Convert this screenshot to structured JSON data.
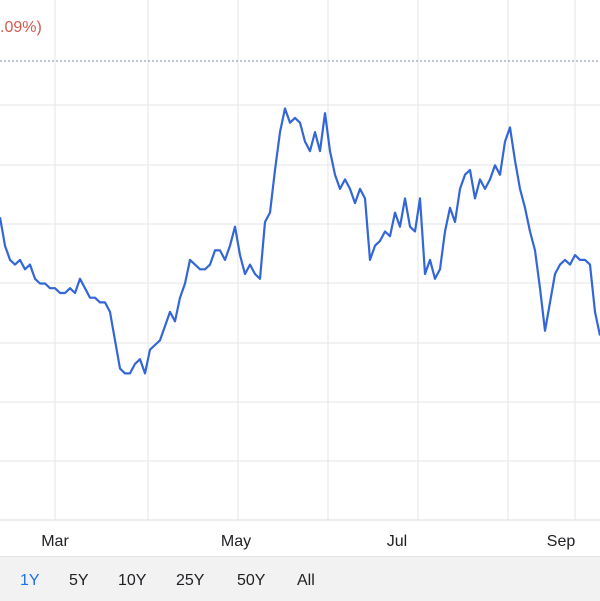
{
  "header": {
    "change_label": ".09%)"
  },
  "range_selector": {
    "options": [
      "1Y",
      "5Y",
      "10Y",
      "25Y",
      "50Y",
      "All"
    ],
    "active": "1Y"
  },
  "colors": {
    "line": "#3366d6",
    "reference_line": "#7b8fa8",
    "grid": "#e6e6e6",
    "change_text": "#d25b4f",
    "active_range": "#1a73e8"
  },
  "chart_data": {
    "type": "line",
    "grid": true,
    "x_tick_labels": [
      "Mar",
      "May",
      "Jul",
      "Sep"
    ],
    "x_tick_positions": [
      1.5,
      3.5,
      5.5,
      7.5
    ],
    "x_range": [
      0.9,
      7.8
    ],
    "y_range": [
      0,
      100
    ],
    "reference_line": 93,
    "series": [
      {
        "values": [
          [
            0.9,
            64
          ],
          [
            0.92,
            58
          ],
          [
            0.94,
            55
          ],
          [
            0.96,
            54
          ],
          [
            0.98,
            55
          ],
          [
            1.0,
            53
          ],
          [
            1.02,
            54
          ],
          [
            1.04,
            51
          ],
          [
            1.06,
            50
          ],
          [
            1.08,
            50
          ],
          [
            1.1,
            49
          ],
          [
            1.12,
            49
          ],
          [
            1.14,
            48
          ],
          [
            1.16,
            48
          ],
          [
            1.18,
            49
          ],
          [
            1.2,
            48
          ],
          [
            1.22,
            51
          ],
          [
            1.24,
            49
          ],
          [
            1.26,
            47
          ],
          [
            1.28,
            47
          ],
          [
            1.3,
            46
          ],
          [
            1.32,
            46
          ],
          [
            1.34,
            44
          ],
          [
            1.36,
            38
          ],
          [
            1.38,
            32
          ],
          [
            1.4,
            31
          ],
          [
            1.42,
            31
          ],
          [
            1.44,
            33
          ],
          [
            1.46,
            34
          ],
          [
            1.48,
            31
          ],
          [
            1.5,
            36
          ],
          [
            1.52,
            37
          ],
          [
            1.54,
            38
          ],
          [
            1.56,
            41
          ],
          [
            1.58,
            44
          ],
          [
            1.6,
            42
          ],
          [
            1.62,
            47
          ],
          [
            1.64,
            50
          ],
          [
            1.66,
            55
          ],
          [
            1.68,
            54
          ],
          [
            1.7,
            53
          ],
          [
            1.72,
            53
          ],
          [
            1.74,
            54
          ],
          [
            1.76,
            57
          ],
          [
            1.78,
            57
          ],
          [
            1.8,
            55
          ],
          [
            1.82,
            58
          ],
          [
            1.84,
            62
          ],
          [
            1.86,
            56
          ],
          [
            1.88,
            52
          ],
          [
            1.9,
            54
          ],
          [
            1.92,
            52
          ],
          [
            1.94,
            51
          ],
          [
            1.96,
            63
          ],
          [
            1.98,
            65
          ],
          [
            2.0,
            74
          ],
          [
            2.02,
            82
          ],
          [
            2.04,
            87
          ],
          [
            2.06,
            84
          ],
          [
            2.08,
            85
          ],
          [
            2.1,
            84
          ],
          [
            2.12,
            80
          ],
          [
            2.14,
            78
          ],
          [
            2.16,
            82
          ],
          [
            2.18,
            78
          ],
          [
            2.2,
            86
          ],
          [
            2.22,
            78
          ],
          [
            2.24,
            73
          ],
          [
            2.26,
            70
          ],
          [
            2.28,
            72
          ],
          [
            2.3,
            70
          ],
          [
            2.32,
            67
          ],
          [
            2.34,
            70
          ],
          [
            2.36,
            68
          ],
          [
            2.38,
            55
          ],
          [
            2.4,
            58
          ],
          [
            2.42,
            59
          ],
          [
            2.44,
            61
          ],
          [
            2.46,
            60
          ],
          [
            2.48,
            65
          ],
          [
            2.5,
            62
          ],
          [
            2.52,
            68
          ],
          [
            2.54,
            62
          ],
          [
            2.56,
            61
          ],
          [
            2.58,
            68
          ],
          [
            2.6,
            52
          ],
          [
            2.62,
            55
          ],
          [
            2.64,
            51
          ],
          [
            2.66,
            53
          ],
          [
            2.68,
            61
          ],
          [
            2.7,
            66
          ],
          [
            2.72,
            63
          ],
          [
            2.74,
            70
          ],
          [
            2.76,
            73
          ],
          [
            2.78,
            74
          ],
          [
            2.8,
            68
          ],
          [
            2.82,
            72
          ],
          [
            2.84,
            70
          ],
          [
            2.86,
            72
          ],
          [
            2.88,
            75
          ],
          [
            2.9,
            73
          ],
          [
            2.92,
            80
          ],
          [
            2.94,
            83
          ],
          [
            2.96,
            76
          ],
          [
            2.98,
            70
          ],
          [
            3.0,
            66
          ],
          [
            3.02,
            61
          ],
          [
            3.04,
            57
          ],
          [
            3.06,
            49
          ],
          [
            3.08,
            40
          ],
          [
            3.1,
            46
          ],
          [
            3.12,
            52
          ],
          [
            3.14,
            54
          ],
          [
            3.16,
            55
          ],
          [
            3.18,
            54
          ],
          [
            3.2,
            56
          ],
          [
            3.22,
            55
          ],
          [
            3.24,
            55
          ],
          [
            3.26,
            54
          ],
          [
            3.28,
            44
          ],
          [
            3.3,
            39
          ]
        ]
      }
    ]
  }
}
